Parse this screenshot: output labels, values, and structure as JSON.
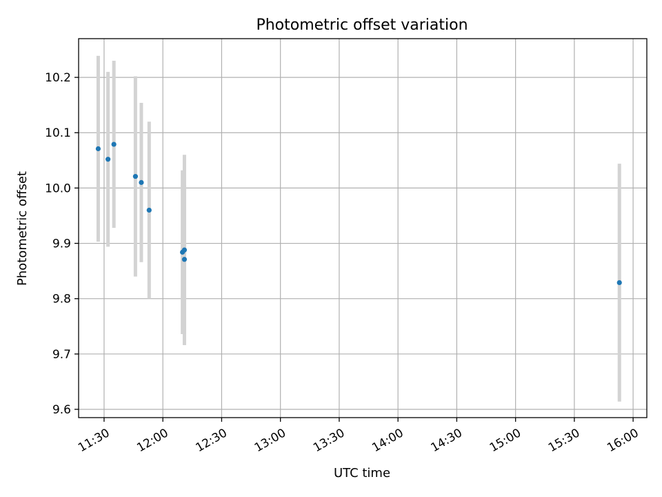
{
  "chart_data": {
    "type": "scatter",
    "title": "Photometric offset variation",
    "xlabel": "UTC time",
    "ylabel": "Photometric offset",
    "x_format": "HH:MM",
    "xlim": [
      "11:17",
      "16:07"
    ],
    "ylim": [
      9.585,
      10.27
    ],
    "x_ticks": [
      "11:30",
      "12:00",
      "12:30",
      "13:00",
      "13:30",
      "14:00",
      "14:30",
      "15:00",
      "15:30",
      "16:00"
    ],
    "y_ticks": [
      9.6,
      9.7,
      9.8,
      9.9,
      10.0,
      10.1,
      10.2
    ],
    "y_tick_labels": [
      "9.6",
      "9.7",
      "9.8",
      "9.9",
      "10.0",
      "10.1",
      "10.2"
    ],
    "grid": true,
    "marker_color": "#1f77b4",
    "errorbar_color": "#d3d3d3",
    "points": [
      {
        "x": "11:27",
        "y": 10.071,
        "err": 0.168
      },
      {
        "x": "11:32",
        "y": 10.052,
        "err": 0.158
      },
      {
        "x": "11:35",
        "y": 10.079,
        "err": 0.151
      },
      {
        "x": "11:46",
        "y": 10.021,
        "err": 0.181
      },
      {
        "x": "11:49",
        "y": 10.01,
        "err": 0.144
      },
      {
        "x": "11:53",
        "y": 9.96,
        "err": 0.16
      },
      {
        "x": "12:10",
        "y": 9.884,
        "err": 0.148
      },
      {
        "x": "12:11",
        "y": 9.871,
        "err": 0.135
      },
      {
        "x": "12:11",
        "y": 9.888,
        "err": 0.172
      },
      {
        "x": "15:53",
        "y": 9.829,
        "err": 0.215
      }
    ]
  }
}
